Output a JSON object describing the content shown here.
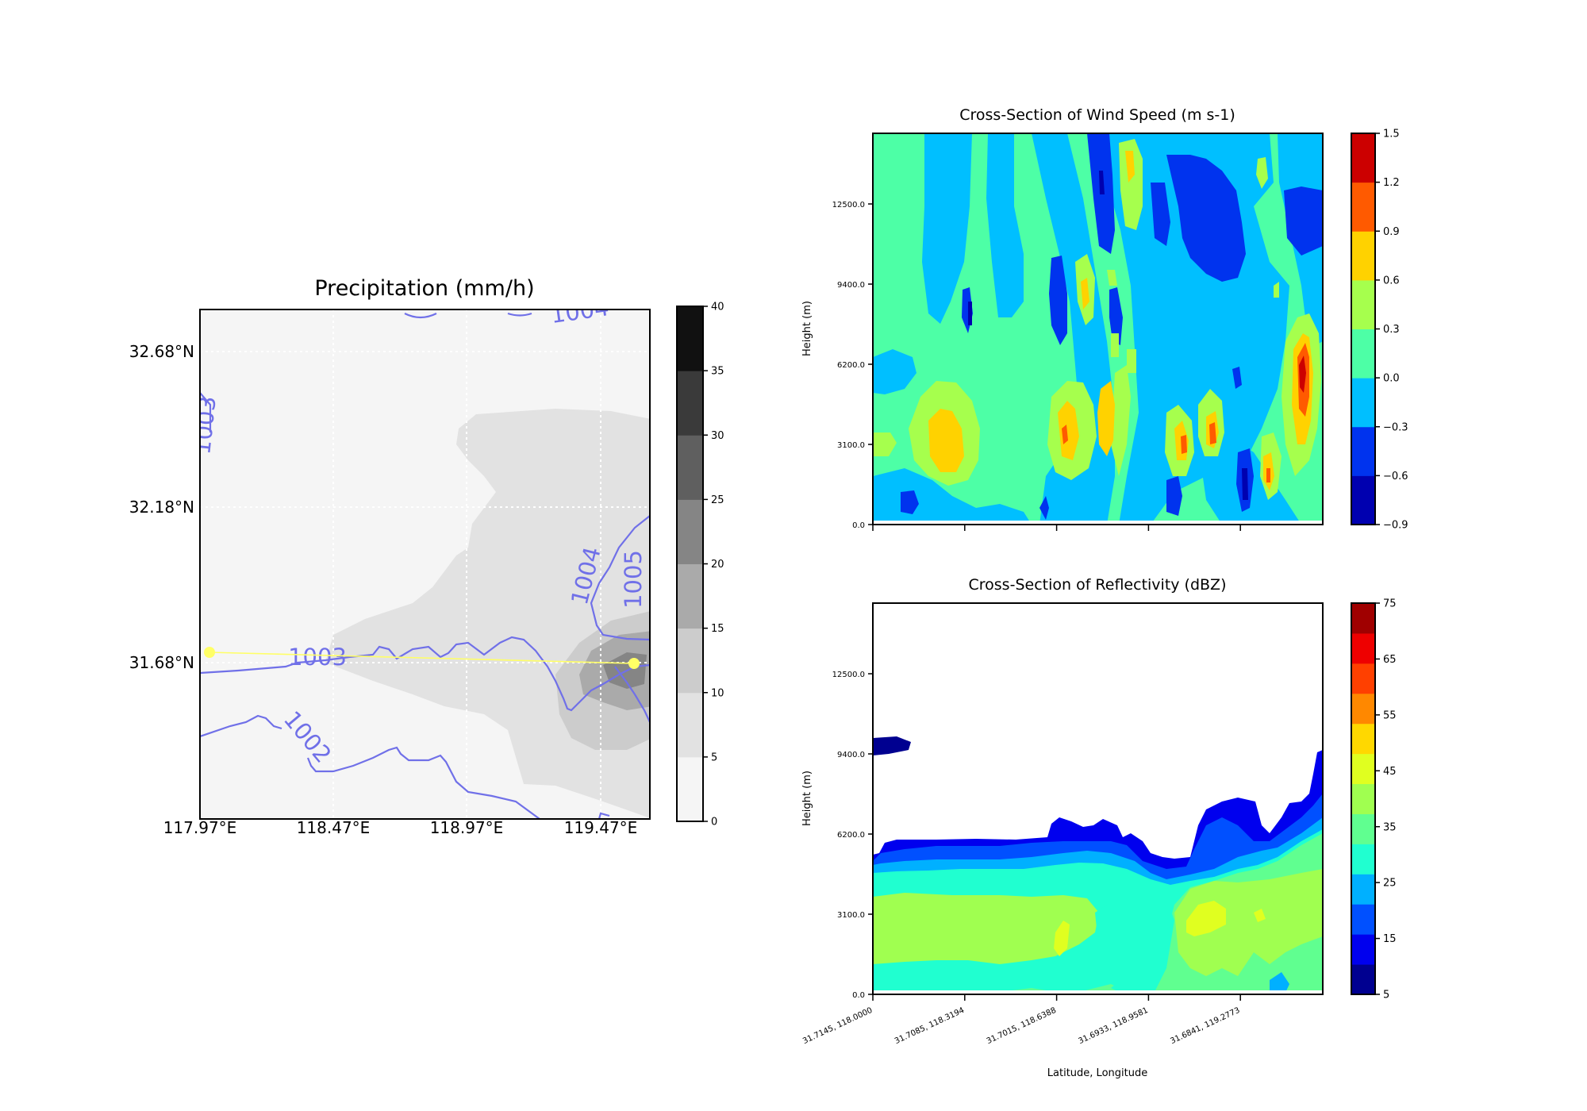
{
  "chart_data": [
    {
      "type": "heatmap",
      "title": "Precipitation (mm/h)",
      "x_tick_labels": [
        "117.97°E",
        "118.47°E",
        "118.97°E",
        "119.47°E"
      ],
      "y_tick_labels": [
        "32.68°N",
        "32.18°N",
        "31.68°N"
      ],
      "lon_range": [
        117.97,
        119.64
      ],
      "lat_range": [
        31.14,
        32.82
      ],
      "grid": true,
      "colorbar": {
        "levels": [
          0,
          5,
          10,
          15,
          20,
          25,
          30,
          35,
          40
        ],
        "tick_labels": [
          "0",
          "5",
          "10",
          "15",
          "20",
          "25",
          "30",
          "35",
          "40"
        ],
        "colors": [
          "#f5f5f5",
          "#e2e2e2",
          "#cccccc",
          "#aaaaaa",
          "#858585",
          "#5f5f5f",
          "#3a3a3a",
          "#111111"
        ]
      },
      "isobar_color": "#7070e8",
      "isobar_labels": [
        "1004",
        "1003",
        "1004",
        "1005",
        "1003",
        "1002"
      ],
      "cross_section_line": {
        "start": [
          117.99,
          31.71
        ],
        "end": [
          119.58,
          31.68
        ],
        "color": "#ffff66"
      }
    },
    {
      "type": "heatmap",
      "title": "Cross-Section of Wind Speed (m s-1)",
      "ylabel": "Height (m)",
      "y_tick_labels": [
        "0.0",
        "3100.0",
        "6200.0",
        "9400.0",
        "12500.0"
      ],
      "colorbar": {
        "tick_labels": [
          "1.5",
          "1.2",
          "0.9",
          "0.6",
          "0.3",
          "0.0",
          "−0.3",
          "−0.6",
          "−0.9"
        ],
        "colors": [
          "#0000b0",
          "#0033ee",
          "#00bfff",
          "#4dffa6",
          "#a6ff4d",
          "#ffd200",
          "#ff5a00",
          "#cc0000"
        ]
      }
    },
    {
      "type": "heatmap",
      "title": "Cross-Section of Reflectivity (dBZ)",
      "ylabel": "Height (m)",
      "xlabel": "Latitude, Longitude",
      "y_tick_labels": [
        "0.0",
        "3100.0",
        "6200.0",
        "9400.0",
        "12500.0"
      ],
      "x_tick_labels": [
        "31.7145, 118.0000",
        "31.7085, 118.3194",
        "31.7015, 118.6388",
        "31.6933, 118.9581",
        "31.6841, 119.2773"
      ],
      "colorbar": {
        "tick_labels": [
          "75",
          "65",
          "55",
          "45",
          "35",
          "25",
          "15",
          "5"
        ],
        "colors": [
          "#000090",
          "#0000ee",
          "#0050ff",
          "#00b0ff",
          "#20ffd0",
          "#60ff90",
          "#a0ff50",
          "#e0ff20",
          "#ffd800",
          "#ff8800",
          "#ff4000",
          "#ee0000",
          "#a00000"
        ]
      }
    }
  ]
}
